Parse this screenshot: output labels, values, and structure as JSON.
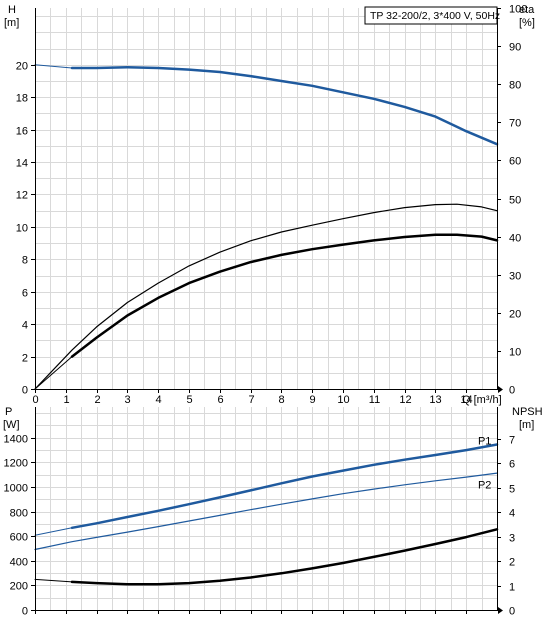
{
  "chart_data": [
    {
      "type": "line",
      "title": "TP 32-200/2, 3*400 V, 50Hz",
      "xlabel": "Q [m³/h]",
      "ylabel_left": [
        "H",
        "[m]"
      ],
      "ylabel_right": [
        "eta",
        "[%]"
      ],
      "xlim": [
        0,
        15
      ],
      "ylim_left": [
        0,
        23.5
      ],
      "ylim_right": [
        0,
        100
      ],
      "x_ticks": [
        0,
        1,
        2,
        3,
        4,
        5,
        6,
        7,
        8,
        9,
        10,
        11,
        12,
        13,
        14
      ],
      "y_ticks_left": [
        0,
        2,
        4,
        6,
        8,
        10,
        12,
        14,
        16,
        18,
        20
      ],
      "y_ticks_right": [
        0,
        10,
        20,
        30,
        40,
        50,
        60,
        70,
        80,
        90,
        100
      ],
      "grid": true,
      "colors": {
        "head": "#1f5a9e",
        "efficiency": "#000000"
      },
      "series": [
        {
          "axis": "left",
          "color": "#1f5a9e",
          "width": 1,
          "x": [
            0,
            1.2
          ],
          "y": [
            20.0,
            19.8
          ]
        },
        {
          "axis": "left",
          "color": "#1f5a9e",
          "width": 2.5,
          "x": [
            1.2,
            2,
            3,
            4,
            5,
            6,
            7,
            8,
            9,
            10,
            11,
            12,
            13,
            14,
            15
          ],
          "y": [
            19.8,
            19.8,
            19.85,
            19.8,
            19.7,
            19.55,
            19.3,
            19.0,
            18.7,
            18.3,
            17.9,
            17.4,
            16.8,
            15.9,
            15.1
          ]
        },
        {
          "axis": "right",
          "color": "#000000",
          "width": 1.2,
          "x": [
            0,
            1.2,
            2,
            3,
            4,
            5,
            6,
            7,
            8,
            9,
            10,
            11,
            12,
            13,
            13.7,
            14.5,
            15
          ],
          "y": [
            0,
            10.2,
            16.3,
            22.7,
            27.8,
            32.3,
            35.9,
            38.9,
            41.2,
            43.0,
            44.7,
            46.3,
            47.6,
            48.4,
            48.5,
            47.8,
            46.8
          ]
        },
        {
          "axis": "right",
          "color": "#000000",
          "width": 1,
          "x": [
            0,
            1.2
          ],
          "y": [
            0,
            8.5
          ]
        },
        {
          "axis": "right",
          "color": "#000000",
          "width": 2.5,
          "x": [
            1.2,
            2,
            3,
            4,
            5,
            6,
            7,
            8,
            9,
            10,
            11,
            12,
            13,
            13.7,
            14.5,
            15
          ],
          "y": [
            8.5,
            13.5,
            19.3,
            23.9,
            27.8,
            30.8,
            33.3,
            35.2,
            36.7,
            37.9,
            39.0,
            39.9,
            40.5,
            40.5,
            40.0,
            39.0
          ]
        }
      ]
    },
    {
      "type": "line",
      "ylabel_left": [
        "P",
        "[W]"
      ],
      "ylabel_right": [
        "NPSH",
        "[m]"
      ],
      "xlim": [
        0,
        15
      ],
      "ylim_left": [
        0,
        1650
      ],
      "ylim_right": [
        0,
        8.3
      ],
      "y_ticks_left": [
        0,
        200,
        400,
        600,
        800,
        1000,
        1200,
        1400
      ],
      "y_ticks_right": [
        0,
        1,
        2,
        3,
        4,
        5,
        6,
        7
      ],
      "grid": true,
      "series": [
        {
          "name": "P1",
          "axis": "left",
          "color": "#1f5a9e",
          "width": 1,
          "x": [
            0,
            1.2
          ],
          "y": [
            608,
            668
          ]
        },
        {
          "name": "P1",
          "axis": "left",
          "color": "#1f5a9e",
          "width": 2.5,
          "x": [
            1.2,
            2,
            3,
            4,
            5,
            6,
            7,
            8,
            9,
            10,
            11,
            12,
            13,
            14,
            15
          ],
          "y": [
            668,
            705,
            756,
            806,
            860,
            915,
            972,
            1030,
            1085,
            1133,
            1180,
            1222,
            1260,
            1300,
            1345
          ]
        },
        {
          "name": "P2",
          "axis": "left",
          "color": "#1f5a9e",
          "width": 1.2,
          "x": [
            0,
            1.2,
            2,
            3,
            4,
            5,
            6,
            7,
            8,
            9,
            10,
            11,
            12,
            13,
            14,
            15
          ],
          "y": [
            492,
            555,
            590,
            633,
            678,
            723,
            769,
            815,
            860,
            903,
            945,
            983,
            1018,
            1050,
            1080,
            1113
          ]
        },
        {
          "axis": "right",
          "color": "#000000",
          "width": 1,
          "x": [
            0,
            1.2
          ],
          "y": [
            1.25,
            1.15
          ]
        },
        {
          "axis": "right",
          "color": "#000000",
          "width": 2.5,
          "x": [
            1.2,
            2,
            3,
            4,
            5,
            6,
            7,
            8,
            9,
            10,
            11,
            12,
            13,
            14,
            15
          ],
          "y": [
            1.15,
            1.1,
            1.05,
            1.05,
            1.1,
            1.2,
            1.33,
            1.5,
            1.7,
            1.92,
            2.17,
            2.43,
            2.7,
            2.98,
            3.3
          ]
        }
      ],
      "annotations": [
        {
          "text": "P1",
          "x": 14.6,
          "y": 1378,
          "color": "#1f5a9e"
        },
        {
          "text": "P2",
          "x": 14.6,
          "y": 1020,
          "color": "#1f5a9e"
        }
      ]
    }
  ]
}
